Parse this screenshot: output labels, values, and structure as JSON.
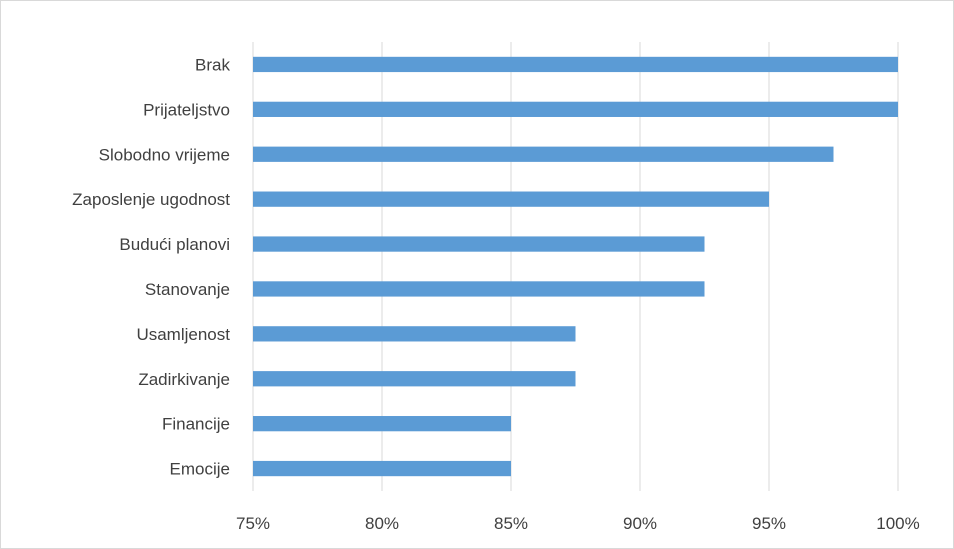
{
  "chart_data": {
    "type": "bar",
    "orientation": "horizontal",
    "title": "",
    "xlabel": "",
    "ylabel": "",
    "categories": [
      "Brak",
      "Prijateljstvo",
      "Slobodno vrijeme",
      "Zaposlenje ugodnost",
      "Budući planovi",
      "Stanovanje",
      "Usamljenost",
      "Zadirkivanje",
      "Financije",
      "Emocije"
    ],
    "values": [
      100,
      100,
      97.5,
      95,
      92.5,
      92.5,
      87.5,
      87.5,
      85,
      85
    ],
    "xlim": [
      75,
      100
    ],
    "ticks": [
      "75%",
      "80%",
      "85%",
      "90%",
      "95%",
      "100%"
    ],
    "tick_values": [
      75,
      80,
      85,
      90,
      95,
      100
    ],
    "bar_color": "#5b9bd5",
    "grid_color": "#d9d9d9",
    "gridlines": true,
    "legend": false
  }
}
